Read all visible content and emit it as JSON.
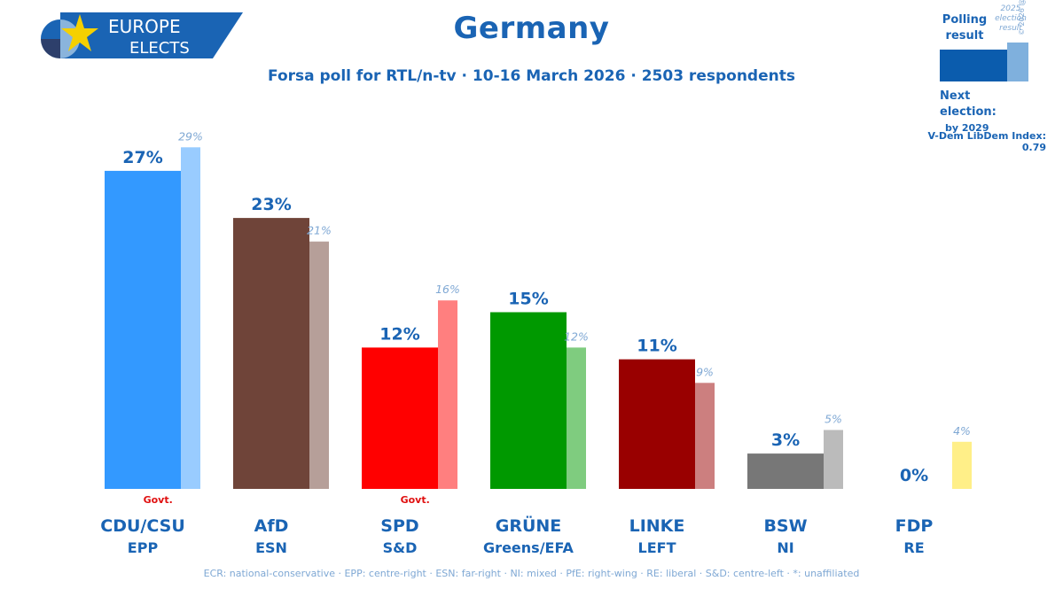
{
  "header": {
    "title": "Germany",
    "subtitle": "Forsa poll for RTL/n-tv · 10-16 March 2026 · 2503 respondents",
    "logo_line1": "EUROPE",
    "logo_line2": "ELECTS"
  },
  "legend": {
    "polling_label_1": "Polling",
    "polling_label_2": "result",
    "election_label_1": "2025",
    "election_label_2": "election",
    "election_label_3": "result",
    "next_election_label": "Next election:",
    "next_election_value": "by 2029",
    "vdem": "V-Dem LibDem Index: 0.79",
    "copyright": "© 2026 @EuropeElects"
  },
  "footnote": "ECR: national-conservative · EPP: centre-right · ESN: far-right · NI: mixed · PfE: right-wing · RE: liberal · S&D: centre-left · *: unaffiliated",
  "govt_label": "Govt.",
  "chart_data": {
    "type": "bar",
    "categories": [
      "CDU/CSU",
      "AfD",
      "SPD",
      "GRÜNE",
      "LINKE",
      "BSW",
      "FDP"
    ],
    "groups": [
      "EPP",
      "ESN",
      "S&D",
      "Greens/EFA",
      "LEFT",
      "NI",
      "RE"
    ],
    "series": [
      {
        "name": "Polling result",
        "values": [
          27,
          23,
          12,
          15,
          11,
          3,
          0
        ]
      },
      {
        "name": "2025 election result",
        "values": [
          29,
          21,
          16,
          12,
          9,
          5,
          4
        ]
      }
    ],
    "value_labels": [
      "27%",
      "23%",
      "12%",
      "15%",
      "11%",
      "3%",
      "0%"
    ],
    "prev_labels": [
      "29%",
      "21%",
      "16%",
      "12%",
      "9%",
      "5%",
      "4%"
    ],
    "government": [
      true,
      false,
      true,
      false,
      false,
      false,
      false
    ],
    "colors": {
      "current": [
        "#3399ff",
        "#6f4439",
        "#ff0000",
        "#009900",
        "#990000",
        "#777777",
        "#ffe000"
      ],
      "previous": [
        "#99ccff",
        "#b69f99",
        "#ff7f7f",
        "#7fcc7f",
        "#cc7f7f",
        "#bbbbbb",
        "#ffef88"
      ],
      "legend_current": "#0b5cad",
      "legend_previous": "#7fb0dd"
    },
    "ylim": [
      0,
      30
    ]
  }
}
